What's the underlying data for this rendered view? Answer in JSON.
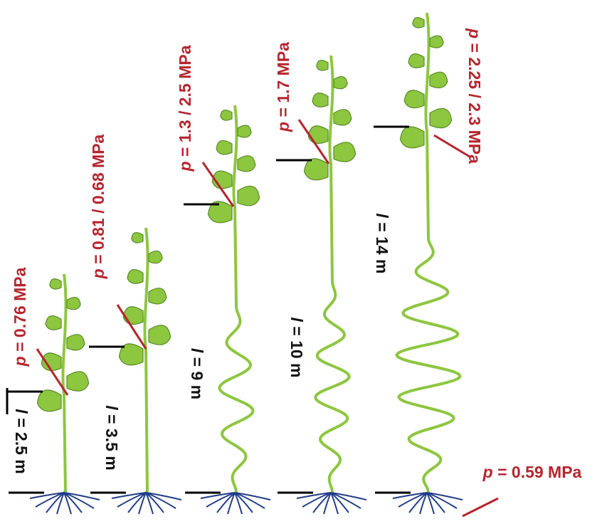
{
  "plants": [
    {
      "pressure": {
        "symbol": "p",
        "text": "= 0.76 MPa"
      },
      "length": {
        "symbol": "l",
        "text": "= 2.5 m"
      }
    },
    {
      "pressure": {
        "symbol": "p",
        "text": "= 0.81 / 0.68 MPa"
      },
      "length": {
        "symbol": "l",
        "text": "= 3.5 m"
      }
    },
    {
      "pressure": {
        "symbol": "p",
        "text": "= 1.3 / 2.5 MPa"
      },
      "length": {
        "symbol": "l",
        "text": "= 9 m"
      }
    },
    {
      "pressure": {
        "symbol": "p",
        "text": "= 1.7 MPa"
      },
      "length": {
        "symbol": "l",
        "text": "= 10 m"
      }
    },
    {
      "pressure": {
        "symbol": "p",
        "text": "= 2.25 / 2.3 MPa"
      },
      "length": {
        "symbol": "l",
        "text": "= 14 m"
      }
    }
  ],
  "root_pressure": {
    "symbol": "p",
    "text": "= 0.59 MPa"
  }
}
